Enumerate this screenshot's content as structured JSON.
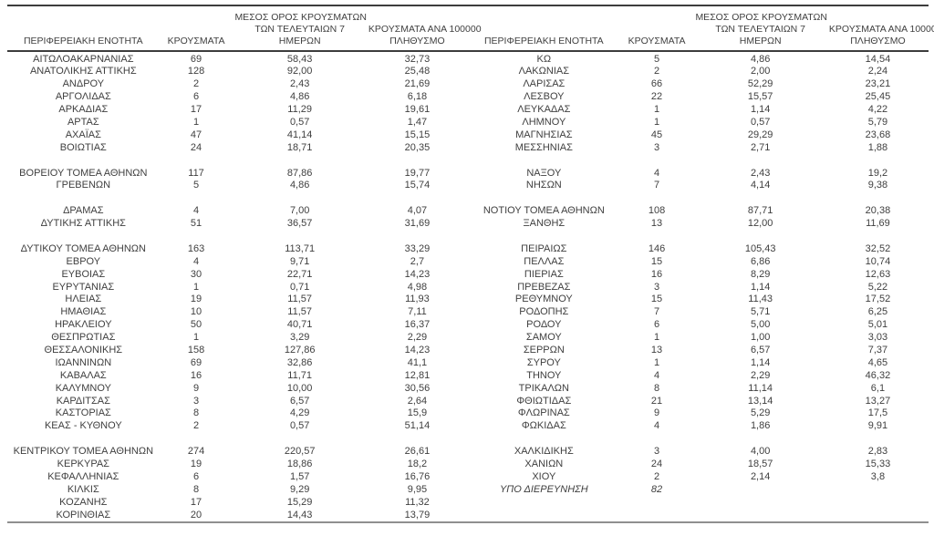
{
  "page": {
    "background": "#ffffff",
    "text_color": "#3f3f3f",
    "border_top_color": "#3d3d3d",
    "border_bottom_color": "#8f8f8f"
  },
  "headers": {
    "region": "ΠΕΡΙΦΕΡΕΙΑΚΗ ΕΝΟΤΗΤΑ",
    "cases": "ΚΡΟΥΣΜΑΤΑ",
    "avg7_line1": "ΜΕΣΟΣ ΟΡΟΣ ΚΡΟΥΣΜΑΤΩΝ",
    "avg7_line2": "ΤΩΝ ΤΕΛΕΥΤΑΙΩΝ 7",
    "avg7_line3": "ΗΜΕΡΩΝ",
    "per100k_line1": "ΚΡΟΥΣΜΑΤΑ ΑΝΑ 100000",
    "per100k_line2": "ΠΛΗΘΥΣΜΟ"
  },
  "left_rows": [
    {
      "region": "ΑΙΤΩΛΟΑΚΑΡΝΑΝΙΑΣ",
      "cases": "69",
      "avg7": "58,43",
      "per100k": "32,73"
    },
    {
      "region": "ΑΝΑΤΟΛΙΚΗΣ ΑΤΤΙΚΗΣ",
      "cases": "128",
      "avg7": "92,00",
      "per100k": "25,48"
    },
    {
      "region": "ΑΝΔΡΟΥ",
      "cases": "2",
      "avg7": "2,43",
      "per100k": "21,69"
    },
    {
      "region": "ΑΡΓΟΛΙΔΑΣ",
      "cases": "6",
      "avg7": "4,86",
      "per100k": "6,18"
    },
    {
      "region": "ΑΡΚΑΔΙΑΣ",
      "cases": "17",
      "avg7": "11,29",
      "per100k": "19,61"
    },
    {
      "region": "ΑΡΤΑΣ",
      "cases": "1",
      "avg7": "0,57",
      "per100k": "1,47"
    },
    {
      "region": "ΑΧΑΪΑΣ",
      "cases": "47",
      "avg7": "41,14",
      "per100k": "15,15"
    },
    {
      "region": "ΒΟΙΩΤΙΑΣ",
      "cases": "24",
      "avg7": "18,71",
      "per100k": "20,35"
    },
    {
      "blank": true
    },
    {
      "region": "ΒΟΡΕΙΟΥ ΤΟΜΕΑ ΑΘΗΝΩΝ",
      "cases": "117",
      "avg7": "87,86",
      "per100k": "19,77"
    },
    {
      "region": "ΓΡΕΒΕΝΩΝ",
      "cases": "5",
      "avg7": "4,86",
      "per100k": "15,74"
    },
    {
      "blank": true
    },
    {
      "region": "ΔΡΑΜΑΣ",
      "cases": "4",
      "avg7": "7,00",
      "per100k": "4,07"
    },
    {
      "region": "ΔΥΤΙΚΗΣ ΑΤΤΙΚΗΣ",
      "cases": "51",
      "avg7": "36,57",
      "per100k": "31,69"
    },
    {
      "blank": true
    },
    {
      "region": "ΔΥΤΙΚΟΥ ΤΟΜΕΑ ΑΘΗΝΩΝ",
      "cases": "163",
      "avg7": "113,71",
      "per100k": "33,29"
    },
    {
      "region": "ΕΒΡΟΥ",
      "cases": "4",
      "avg7": "9,71",
      "per100k": "2,7"
    },
    {
      "region": "ΕΥΒΟΙΑΣ",
      "cases": "30",
      "avg7": "22,71",
      "per100k": "14,23"
    },
    {
      "region": "ΕΥΡΥΤΑΝΙΑΣ",
      "cases": "1",
      "avg7": "0,71",
      "per100k": "4,98"
    },
    {
      "region": "ΗΛΕΙΑΣ",
      "cases": "19",
      "avg7": "11,57",
      "per100k": "11,93"
    },
    {
      "region": "ΗΜΑΘΙΑΣ",
      "cases": "10",
      "avg7": "11,57",
      "per100k": "7,11"
    },
    {
      "region": "ΗΡΑΚΛΕΙΟΥ",
      "cases": "50",
      "avg7": "40,71",
      "per100k": "16,37"
    },
    {
      "region": "ΘΕΣΠΡΩΤΙΑΣ",
      "cases": "1",
      "avg7": "3,29",
      "per100k": "2,29"
    },
    {
      "region": "ΘΕΣΣΑΛΟΝΙΚΗΣ",
      "cases": "158",
      "avg7": "127,86",
      "per100k": "14,23"
    },
    {
      "region": "ΙΩΑΝΝΙΝΩΝ",
      "cases": "69",
      "avg7": "32,86",
      "per100k": "41,1"
    },
    {
      "region": "ΚΑΒΑΛΑΣ",
      "cases": "16",
      "avg7": "11,71",
      "per100k": "12,81"
    },
    {
      "region": "ΚΑΛΥΜΝΟΥ",
      "cases": "9",
      "avg7": "10,00",
      "per100k": "30,56"
    },
    {
      "region": "ΚΑΡΔΙΤΣΑΣ",
      "cases": "3",
      "avg7": "6,57",
      "per100k": "2,64"
    },
    {
      "region": "ΚΑΣΤΟΡΙΑΣ",
      "cases": "8",
      "avg7": "4,29",
      "per100k": "15,9"
    },
    {
      "region": "ΚΕΑΣ - ΚΥΘΝΟΥ",
      "cases": "2",
      "avg7": "0,57",
      "per100k": "51,14"
    },
    {
      "blank": true
    },
    {
      "region": "ΚΕΝΤΡΙΚΟΥ ΤΟΜΕΑ ΑΘΗΝΩΝ",
      "cases": "274",
      "avg7": "220,57",
      "per100k": "26,61"
    },
    {
      "region": "ΚΕΡΚΥΡΑΣ",
      "cases": "19",
      "avg7": "18,86",
      "per100k": "18,2"
    },
    {
      "region": "ΚΕΦΑΛΛΗΝΙΑΣ",
      "cases": "6",
      "avg7": "1,57",
      "per100k": "16,76"
    },
    {
      "region": "ΚΙΛΚΙΣ",
      "cases": "8",
      "avg7": "9,29",
      "per100k": "9,95"
    },
    {
      "region": "ΚΟΖΑΝΗΣ",
      "cases": "17",
      "avg7": "15,29",
      "per100k": "11,32"
    },
    {
      "region": "ΚΟΡΙΝΘΙΑΣ",
      "cases": "20",
      "avg7": "14,43",
      "per100k": "13,79"
    }
  ],
  "right_rows": [
    {
      "region": "ΚΩ",
      "cases": "5",
      "avg7": "4,86",
      "per100k": "14,54"
    },
    {
      "region": "ΛΑΚΩΝΙΑΣ",
      "cases": "2",
      "avg7": "2,00",
      "per100k": "2,24"
    },
    {
      "region": "ΛΑΡΙΣΑΣ",
      "cases": "66",
      "avg7": "52,29",
      "per100k": "23,21"
    },
    {
      "region": "ΛΕΣΒΟΥ",
      "cases": "22",
      "avg7": "15,57",
      "per100k": "25,45"
    },
    {
      "region": "ΛΕΥΚΑΔΑΣ",
      "cases": "1",
      "avg7": "1,14",
      "per100k": "4,22"
    },
    {
      "region": "ΛΗΜΝΟΥ",
      "cases": "1",
      "avg7": "0,57",
      "per100k": "5,79"
    },
    {
      "region": "ΜΑΓΝΗΣΙΑΣ",
      "cases": "45",
      "avg7": "29,29",
      "per100k": "23,68"
    },
    {
      "region": "ΜΕΣΣΗΝΙΑΣ",
      "cases": "3",
      "avg7": "2,71",
      "per100k": "1,88"
    },
    {
      "blank": true
    },
    {
      "region": "ΝΑΞΟΥ",
      "cases": "4",
      "avg7": "2,43",
      "per100k": "19,2"
    },
    {
      "region": "ΝΗΣΩΝ",
      "cases": "7",
      "avg7": "4,14",
      "per100k": "9,38"
    },
    {
      "blank": true
    },
    {
      "region": "ΝΟΤΙΟΥ ΤΟΜΕΑ ΑΘΗΝΩΝ",
      "cases": "108",
      "avg7": "87,71",
      "per100k": "20,38"
    },
    {
      "region": "ΞΑΝΘΗΣ",
      "cases": "13",
      "avg7": "12,00",
      "per100k": "11,69"
    },
    {
      "blank": true
    },
    {
      "region": "ΠΕΙΡΑΙΩΣ",
      "cases": "146",
      "avg7": "105,43",
      "per100k": "32,52"
    },
    {
      "region": "ΠΕΛΛΑΣ",
      "cases": "15",
      "avg7": "6,86",
      "per100k": "10,74"
    },
    {
      "region": "ΠΙΕΡΙΑΣ",
      "cases": "16",
      "avg7": "8,29",
      "per100k": "12,63"
    },
    {
      "region": "ΠΡΕΒΕΖΑΣ",
      "cases": "3",
      "avg7": "1,14",
      "per100k": "5,22"
    },
    {
      "region": "ΡΕΘΥΜΝΟΥ",
      "cases": "15",
      "avg7": "11,43",
      "per100k": "17,52"
    },
    {
      "region": "ΡΟΔΟΠΗΣ",
      "cases": "7",
      "avg7": "5,71",
      "per100k": "6,25"
    },
    {
      "region": "ΡΟΔΟΥ",
      "cases": "6",
      "avg7": "5,00",
      "per100k": "5,01"
    },
    {
      "region": "ΣΑΜΟΥ",
      "cases": "1",
      "avg7": "1,00",
      "per100k": "3,03"
    },
    {
      "region": "ΣΕΡΡΩΝ",
      "cases": "13",
      "avg7": "6,57",
      "per100k": "7,37"
    },
    {
      "region": "ΣΥΡΟΥ",
      "cases": "1",
      "avg7": "1,14",
      "per100k": "4,65"
    },
    {
      "region": "ΤΗΝΟΥ",
      "cases": "4",
      "avg7": "2,29",
      "per100k": "46,32"
    },
    {
      "region": "ΤΡΙΚΑΛΩΝ",
      "cases": "8",
      "avg7": "11,14",
      "per100k": "6,1"
    },
    {
      "region": "ΦΘΙΩΤΙΔΑΣ",
      "cases": "21",
      "avg7": "13,14",
      "per100k": "13,27"
    },
    {
      "region": "ΦΛΩΡΙΝΑΣ",
      "cases": "9",
      "avg7": "5,29",
      "per100k": "17,5"
    },
    {
      "region": "ΦΩΚΙΔΑΣ",
      "cases": "4",
      "avg7": "1,86",
      "per100k": "9,91"
    },
    {
      "blank": true
    },
    {
      "region": "ΧΑΛΚΙΔΙΚΗΣ",
      "cases": "3",
      "avg7": "4,00",
      "per100k": "2,83"
    },
    {
      "region": "ΧΑΝΙΩΝ",
      "cases": "24",
      "avg7": "18,57",
      "per100k": "15,33"
    },
    {
      "region": "ΧΙΟΥ",
      "cases": "2",
      "avg7": "2,14",
      "per100k": "3,8"
    },
    {
      "region": "ΥΠΟ ΔΙΕΡΕΥΝΗΣΗ",
      "cases": "82",
      "avg7": "",
      "per100k": "",
      "italic": true
    },
    {
      "blank": true
    },
    {
      "blank": true
    }
  ]
}
